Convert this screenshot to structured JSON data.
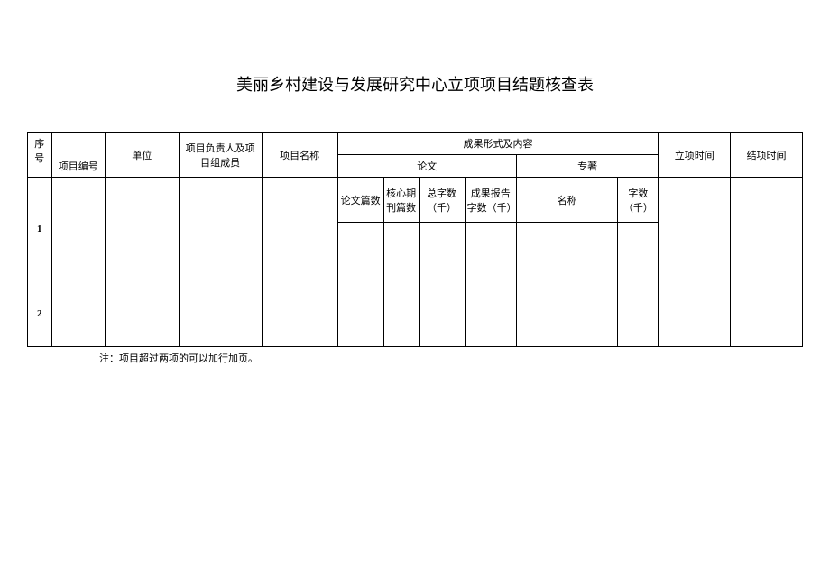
{
  "title": "美丽乡村建设与发展研究中心立项项目结题核查表",
  "headers": {
    "seq": "序号",
    "project_number": "项目编号",
    "unit": "单位",
    "leader": "项目负责人及项目组成员",
    "project_name": "项目名称",
    "result_form": "成果形式及内容",
    "paper": "论文",
    "monograph": "专著",
    "setup_time": "立项时间",
    "close_time": "结项时间",
    "paper_count": "论文篇数",
    "core_count": "核心期刊篇数",
    "total_words": "总字数（千）",
    "report_words": "成果报告字数（千）",
    "mono_name": "名称",
    "mono_words": "字数（千）"
  },
  "rows": [
    {
      "seq": "1",
      "project_number": "",
      "unit": "",
      "leader": "",
      "project_name": "",
      "paper_count": "",
      "core_count": "",
      "total_words": "",
      "report_words": "",
      "mono_name": "",
      "mono_words": "",
      "setup_time": "",
      "close_time": ""
    },
    {
      "seq": "2",
      "project_number": "",
      "unit": "",
      "leader": "",
      "project_name": "",
      "paper_count": "",
      "core_count": "",
      "total_words": "",
      "report_words": "",
      "mono_name": "",
      "mono_words": "",
      "setup_time": "",
      "close_time": ""
    }
  ],
  "note": "注：项目超过两项的可以加行加页。"
}
